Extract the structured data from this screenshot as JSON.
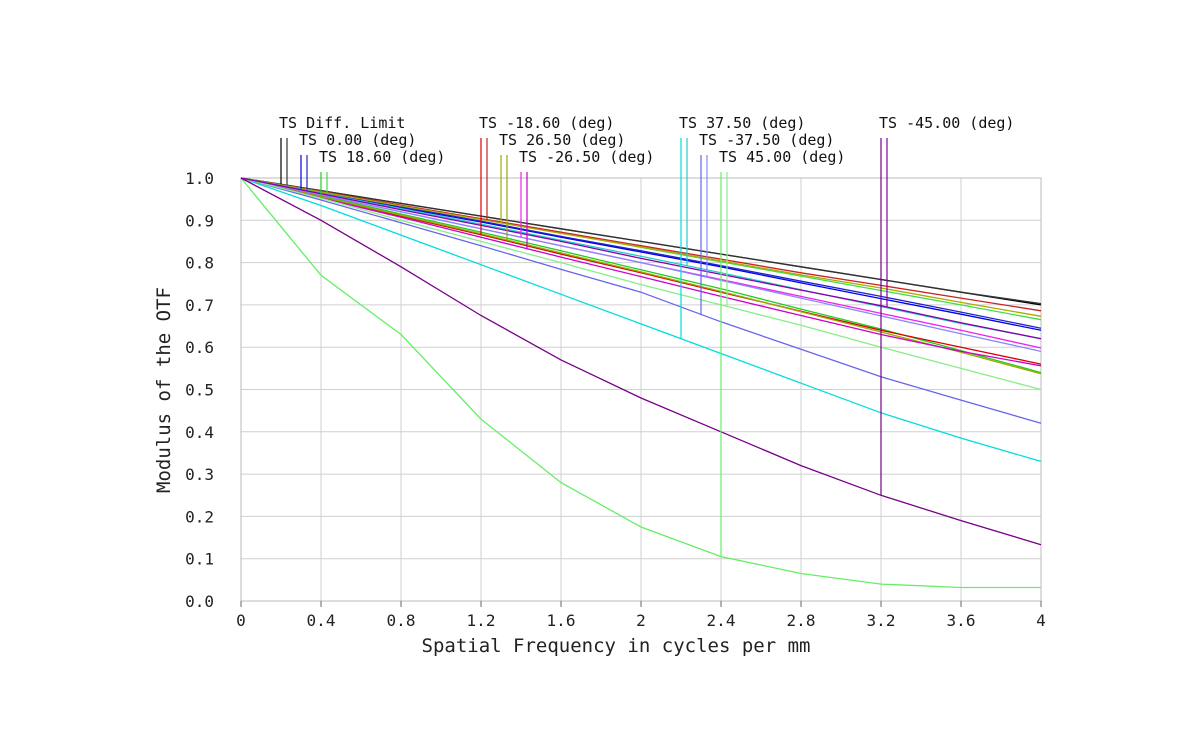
{
  "chart_data": {
    "type": "line",
    "xlabel": "Spatial Frequency in cycles per mm",
    "ylabel": "Modulus of the OTF",
    "xlim": [
      0,
      4
    ],
    "ylim": [
      0,
      1
    ],
    "x_ticks": [
      "0",
      "0.4",
      "0.8",
      "1.2",
      "1.6",
      "2",
      "2.4",
      "2.8",
      "3.2",
      "3.6",
      "4"
    ],
    "y_ticks": [
      "0.0",
      "0.1",
      "0.2",
      "0.3",
      "0.4",
      "0.5",
      "0.6",
      "0.7",
      "0.8",
      "0.9",
      "1.0"
    ],
    "grid": true,
    "legend_placement": "top",
    "x": [
      0,
      0.4,
      0.8,
      1.2,
      1.6,
      2.0,
      2.4,
      2.8,
      3.2,
      3.6,
      4.0
    ],
    "legend_entries": [
      {
        "label": "TS Diff. Limit",
        "colors": [
          "#000000",
          "#333333"
        ]
      },
      {
        "label": "TS 0.00 (deg)",
        "colors": [
          "#0000ee",
          "#2222cc"
        ]
      },
      {
        "label": "TS 18.60 (deg)",
        "colors": [
          "#22cc22",
          "#44dd44"
        ]
      },
      {
        "label": "TS -18.60 (deg)",
        "colors": [
          "#dd0000",
          "#cc2222"
        ]
      },
      {
        "label": "TS 26.50 (deg)",
        "colors": [
          "#aaaa00",
          "#99aa00"
        ]
      },
      {
        "label": "TS -26.50 (deg)",
        "colors": [
          "#ee22ee",
          "#cc00cc"
        ]
      },
      {
        "label": "TS 37.50 (deg)",
        "colors": [
          "#00dddd",
          "#22cccc"
        ]
      },
      {
        "label": "TS -37.50 (deg)",
        "colors": [
          "#6666ee",
          "#8888ff"
        ]
      },
      {
        "label": "TS 45.00 (deg)",
        "colors": [
          "#66ee66",
          "#88ee88"
        ]
      },
      {
        "label": "TS -45.00 (deg)",
        "colors": [
          "#770088",
          "#8800aa"
        ]
      }
    ],
    "series": [
      {
        "legend": 0,
        "color": "#000000",
        "values": [
          1.0,
          0.97,
          0.94,
          0.91,
          0.88,
          0.85,
          0.82,
          0.79,
          0.76,
          0.73,
          0.7
        ]
      },
      {
        "legend": 0,
        "color": "#333333",
        "values": [
          1.0,
          0.97,
          0.94,
          0.91,
          0.88,
          0.85,
          0.82,
          0.79,
          0.76,
          0.73,
          0.703
        ]
      },
      {
        "legend": 1,
        "color": "#0000ee",
        "values": [
          1.0,
          0.966,
          0.93,
          0.896,
          0.86,
          0.825,
          0.79,
          0.752,
          0.715,
          0.678,
          0.64
        ]
      },
      {
        "legend": 1,
        "color": "#2222cc",
        "values": [
          1.0,
          0.967,
          0.932,
          0.898,
          0.862,
          0.828,
          0.793,
          0.756,
          0.72,
          0.683,
          0.645
        ]
      },
      {
        "legend": 2,
        "color": "#22cc22",
        "values": [
          1.0,
          0.958,
          0.915,
          0.872,
          0.828,
          0.783,
          0.738,
          0.69,
          0.643,
          0.592,
          0.54
        ]
      },
      {
        "legend": 2,
        "color": "#44dd44",
        "values": [
          1.0,
          0.968,
          0.935,
          0.903,
          0.87,
          0.836,
          0.802,
          0.768,
          0.734,
          0.7,
          0.665
        ]
      },
      {
        "legend": 3,
        "color": "#dd0000",
        "values": [
          1.0,
          0.956,
          0.91,
          0.866,
          0.82,
          0.776,
          0.73,
          0.685,
          0.64,
          0.6,
          0.56
        ]
      },
      {
        "legend": 3,
        "color": "#cc2222",
        "values": [
          1.0,
          0.968,
          0.936,
          0.904,
          0.872,
          0.84,
          0.808,
          0.776,
          0.746,
          0.716,
          0.686
        ]
      },
      {
        "legend": 4,
        "color": "#aaaa00",
        "values": [
          1.0,
          0.967,
          0.934,
          0.902,
          0.869,
          0.837,
          0.804,
          0.771,
          0.74,
          0.706,
          0.673
        ]
      },
      {
        "legend": 4,
        "color": "#99aa00",
        "values": [
          1.0,
          0.956,
          0.912,
          0.868,
          0.823,
          0.778,
          0.732,
          0.684,
          0.636,
          0.588,
          0.537
        ]
      },
      {
        "legend": 5,
        "color": "#ee22ee",
        "values": [
          1.0,
          0.96,
          0.92,
          0.88,
          0.84,
          0.8,
          0.76,
          0.72,
          0.68,
          0.64,
          0.598
        ]
      },
      {
        "legend": 5,
        "color": "#cc00cc",
        "values": [
          1.0,
          0.953,
          0.907,
          0.86,
          0.813,
          0.767,
          0.72,
          0.675,
          0.63,
          0.59,
          0.556
        ]
      },
      {
        "legend": 6,
        "color": "#00dddd",
        "values": [
          1.0,
          0.935,
          0.865,
          0.795,
          0.725,
          0.655,
          0.585,
          0.515,
          0.445,
          0.385,
          0.33
        ]
      },
      {
        "legend": 6,
        "color": "#22cccc",
        "values": [
          1.0,
          0.964,
          0.928,
          0.891,
          0.853,
          0.815,
          0.776,
          0.736,
          0.696,
          0.656,
          0.62
        ]
      },
      {
        "legend": 7,
        "color": "#6666ee",
        "values": [
          1.0,
          0.948,
          0.894,
          0.84,
          0.784,
          0.73,
          0.66,
          0.595,
          0.53,
          0.475,
          0.42
        ]
      },
      {
        "legend": 7,
        "color": "#8888ff",
        "values": [
          1.0,
          0.96,
          0.92,
          0.88,
          0.84,
          0.8,
          0.758,
          0.716,
          0.674,
          0.632,
          0.59
        ]
      },
      {
        "legend": 8,
        "color": "#66ee66",
        "values": [
          1.0,
          0.77,
          0.63,
          0.43,
          0.28,
          0.175,
          0.105,
          0.065,
          0.04,
          0.032,
          0.032
        ]
      },
      {
        "legend": 8,
        "color": "#88ee88",
        "values": [
          1.0,
          0.952,
          0.9,
          0.85,
          0.8,
          0.748,
          0.7,
          0.652,
          0.6,
          0.55,
          0.5
        ]
      },
      {
        "legend": 9,
        "color": "#770088",
        "values": [
          1.0,
          0.9,
          0.79,
          0.675,
          0.57,
          0.48,
          0.4,
          0.32,
          0.25,
          0.19,
          0.133
        ]
      },
      {
        "legend": 9,
        "color": "#8800aa",
        "values": [
          1.0,
          0.963,
          0.925,
          0.888,
          0.85,
          0.81,
          0.772,
          0.735,
          0.698,
          0.658,
          0.62
        ]
      }
    ],
    "markers": [
      {
        "legend": 0,
        "x": 0.2,
        "y": 0.0
      },
      {
        "legend": 0,
        "x": 0.23,
        "y": 0.0
      },
      {
        "legend": 1,
        "x": 0.3,
        "y": 0.0
      },
      {
        "legend": 1,
        "x": 0.33,
        "y": 0.0
      },
      {
        "legend": 2,
        "x": 0.4,
        "y": 0.0
      },
      {
        "legend": 2,
        "x": 0.43,
        "y": 0.0
      },
      {
        "legend": 3,
        "x": 1.2,
        "y": 0.0
      },
      {
        "legend": 3,
        "x": 1.23,
        "y": 0.0
      },
      {
        "legend": 4,
        "x": 1.3,
        "y": 0.0
      },
      {
        "legend": 4,
        "x": 1.33,
        "y": 0.0
      },
      {
        "legend": 5,
        "x": 1.4,
        "y": 0.0
      },
      {
        "legend": 5,
        "x": 1.43,
        "y": 0.0
      },
      {
        "legend": 6,
        "x": 2.2,
        "y": 0.0
      },
      {
        "legend": 6,
        "x": 2.23,
        "y": 0.0
      },
      {
        "legend": 7,
        "x": 2.3,
        "y": 0.0
      },
      {
        "legend": 7,
        "x": 2.33,
        "y": 0.0
      },
      {
        "legend": 8,
        "x": 2.4,
        "y": 0.0
      },
      {
        "legend": 8,
        "x": 2.43,
        "y": 0.0
      },
      {
        "legend": 9,
        "x": 3.2,
        "y": 0.0
      },
      {
        "legend": 9,
        "x": 3.23,
        "y": 0.0
      }
    ]
  }
}
